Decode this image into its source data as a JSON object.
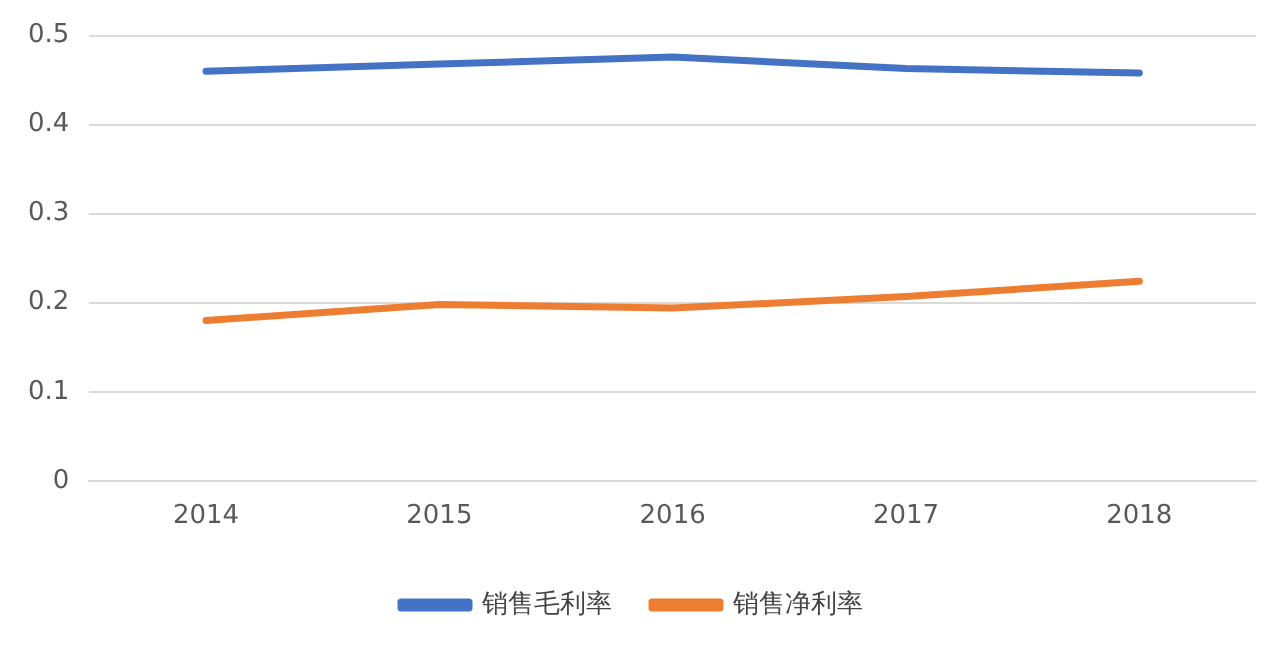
{
  "chart_data": {
    "type": "line",
    "categories": [
      "2014",
      "2015",
      "2016",
      "2017",
      "2018"
    ],
    "series": [
      {
        "name": "销售毛利率",
        "color": "#4472c4",
        "values": [
          0.46,
          0.468,
          0.476,
          0.463,
          0.458
        ]
      },
      {
        "name": "销售净利率",
        "color": "#ed7d31",
        "values": [
          0.18,
          0.198,
          0.194,
          0.207,
          0.224
        ]
      }
    ],
    "ylim": [
      0,
      0.5
    ],
    "yticks": [
      0,
      0.1,
      0.2,
      0.3,
      0.4,
      0.5
    ],
    "grid": "y",
    "legend": "bottom",
    "marker": "none",
    "line_style": "solid"
  }
}
